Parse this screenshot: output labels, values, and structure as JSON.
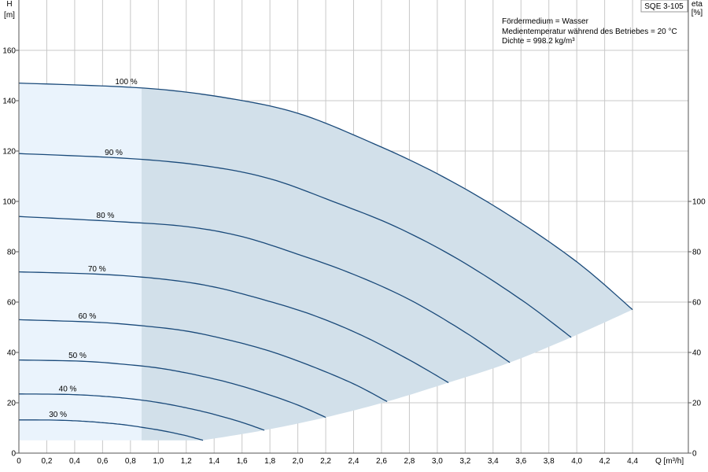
{
  "chart_data": {
    "type": "line",
    "title": "SQE 3-105",
    "xlabel": "Q [m³/h]",
    "ylabel_top": "H",
    "ylabel_unit": "[m]",
    "y2label_top": "eta",
    "y2label_unit": "[%]",
    "xlim": [
      0,
      4.8
    ],
    "ylim": [
      0,
      180
    ],
    "x_ticks": [
      "0",
      "0,2",
      "0,4",
      "0,6",
      "0,8",
      "1,0",
      "1,2",
      "1,4",
      "1,6",
      "1,8",
      "2,0",
      "2,2",
      "2,4",
      "2,6",
      "2,8",
      "3,0",
      "3,2",
      "3,4",
      "3,6",
      "3,8",
      "4,0",
      "4,2",
      "4,4"
    ],
    "x_tick_values": [
      0,
      0.2,
      0.4,
      0.6,
      0.8,
      1.0,
      1.2,
      1.4,
      1.6,
      1.8,
      2.0,
      2.2,
      2.4,
      2.6,
      2.8,
      3.0,
      3.2,
      3.4,
      3.6,
      3.8,
      4.0,
      4.2,
      4.4
    ],
    "y_ticks": [
      0,
      20,
      40,
      60,
      80,
      100,
      120,
      140,
      160
    ],
    "y2_ticks": [
      0,
      20,
      40,
      60,
      80,
      100
    ],
    "grid": true,
    "info_lines": [
      "Fördermedium = Wasser",
      "Medientemperatur während des Betriebes = 20 °C",
      "Dichte = 998.2 kg/m³"
    ],
    "recommended_region_start_q": 0.88,
    "series": [
      {
        "name": "100 %",
        "label_q": 0.77,
        "points": [
          [
            0,
            147
          ],
          [
            0.9,
            145
          ],
          [
            1.5,
            141
          ],
          [
            2.0,
            135
          ],
          [
            2.5,
            124
          ],
          [
            3.0,
            111
          ],
          [
            3.5,
            95
          ],
          [
            4.0,
            76
          ],
          [
            4.4,
            57
          ]
        ]
      },
      {
        "name": "90 %",
        "label_q": 0.68,
        "points": [
          [
            0,
            119
          ],
          [
            0.8,
            117
          ],
          [
            1.35,
            114
          ],
          [
            1.8,
            109
          ],
          [
            2.25,
            100
          ],
          [
            2.7,
            90
          ],
          [
            3.15,
            77
          ],
          [
            3.6,
            61
          ],
          [
            3.96,
            46
          ]
        ]
      },
      {
        "name": "80 %",
        "label_q": 0.62,
        "points": [
          [
            0,
            94
          ],
          [
            0.7,
            92
          ],
          [
            1.2,
            90
          ],
          [
            1.6,
            86
          ],
          [
            2.0,
            79
          ],
          [
            2.4,
            71
          ],
          [
            2.8,
            61
          ],
          [
            3.2,
            48
          ],
          [
            3.52,
            36
          ]
        ]
      },
      {
        "name": "70 %",
        "label_q": 0.56,
        "points": [
          [
            0,
            72
          ],
          [
            0.6,
            71
          ],
          [
            1.05,
            69
          ],
          [
            1.4,
            66
          ],
          [
            1.75,
            61
          ],
          [
            2.1,
            55
          ],
          [
            2.45,
            47
          ],
          [
            2.8,
            37
          ],
          [
            3.08,
            28
          ]
        ]
      },
      {
        "name": "60 %",
        "label_q": 0.49,
        "points": [
          [
            0,
            53
          ],
          [
            0.55,
            52
          ],
          [
            0.9,
            50.5
          ],
          [
            1.2,
            48.5
          ],
          [
            1.5,
            45
          ],
          [
            1.8,
            40.5
          ],
          [
            2.1,
            34.5
          ],
          [
            2.4,
            27.5
          ],
          [
            2.64,
            20.5
          ]
        ]
      },
      {
        "name": "50 %",
        "label_q": 0.42,
        "points": [
          [
            0,
            37
          ],
          [
            0.45,
            36.5
          ],
          [
            0.75,
            35.3
          ],
          [
            1.0,
            33.8
          ],
          [
            1.25,
            31.3
          ],
          [
            1.5,
            28.1
          ],
          [
            1.75,
            24
          ],
          [
            2.0,
            19.1
          ],
          [
            2.2,
            14.2
          ]
        ]
      },
      {
        "name": "40 %",
        "label_q": 0.35,
        "points": [
          [
            0,
            23.5
          ],
          [
            0.36,
            23.3
          ],
          [
            0.6,
            22.6
          ],
          [
            0.8,
            21.6
          ],
          [
            1.0,
            20.1
          ],
          [
            1.2,
            18
          ],
          [
            1.4,
            15.4
          ],
          [
            1.6,
            12.2
          ],
          [
            1.76,
            9.1
          ]
        ]
      },
      {
        "name": "30 %",
        "label_q": 0.28,
        "points": [
          [
            0,
            13.2
          ],
          [
            0.27,
            13.1
          ],
          [
            0.45,
            12.7
          ],
          [
            0.6,
            12.1
          ],
          [
            0.75,
            11.3
          ],
          [
            0.9,
            10.1
          ],
          [
            1.05,
            8.7
          ],
          [
            1.2,
            6.9
          ],
          [
            1.32,
            5.1
          ]
        ]
      }
    ],
    "colors": {
      "curve": "#1a4a7a",
      "region_recommended": "#d2e0ea",
      "region_extended": "#eaf3fc",
      "grid": "#c8c8c8",
      "title_border": "#999999"
    }
  }
}
